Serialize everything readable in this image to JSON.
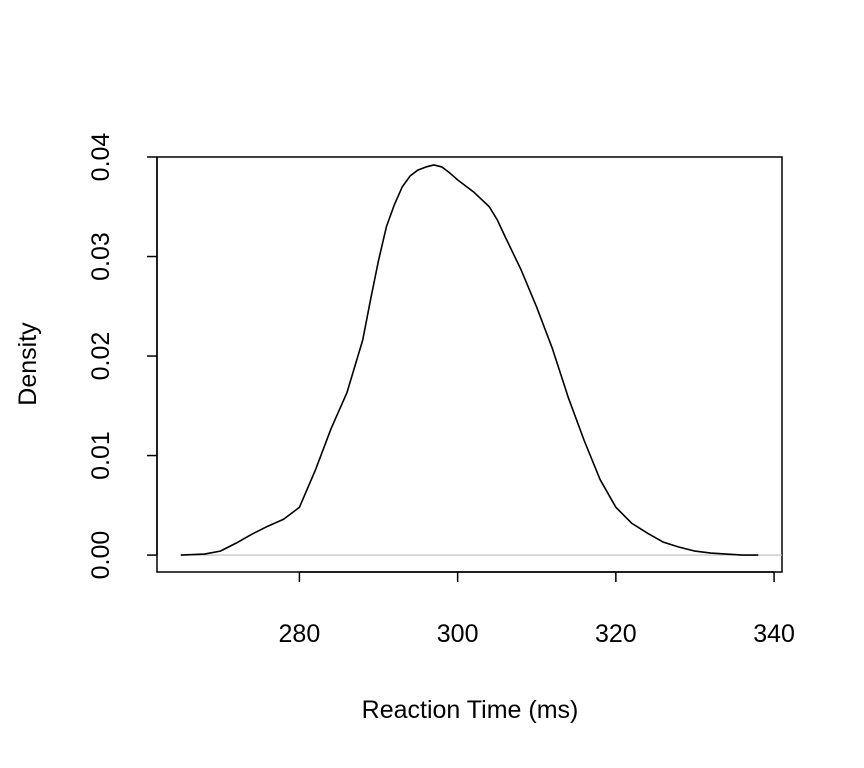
{
  "chart_data": {
    "type": "line",
    "title": "",
    "xlabel": "Reaction Time (ms)",
    "ylabel": "Density",
    "xlim": [
      262,
      341
    ],
    "ylim": [
      -0.0017,
      0.04
    ],
    "x_ticks": [
      280,
      300,
      320,
      340
    ],
    "x_tick_labels": [
      "280",
      "300",
      "320",
      "340"
    ],
    "y_ticks": [
      0.0,
      0.01,
      0.02,
      0.03,
      0.04
    ],
    "y_tick_labels": [
      "0.00",
      "0.01",
      "0.02",
      "0.03",
      "0.04"
    ],
    "grid": false,
    "legend": "none",
    "baseline": {
      "y": 0,
      "color": "#bebebe"
    },
    "series": [
      {
        "color": "#000000",
        "x": [
          265,
          268,
          270,
          272,
          274,
          276,
          278,
          280,
          282,
          284,
          286,
          288,
          289,
          290,
          291,
          292,
          293,
          294,
          295,
          296,
          297,
          298,
          299,
          300,
          302,
          304,
          305,
          306,
          308,
          310,
          312,
          314,
          316,
          318,
          320,
          322,
          324,
          326,
          328,
          330,
          332,
          334,
          336,
          338
        ],
        "y": [
          0.0,
          0.0001,
          0.0004,
          0.0012,
          0.0021,
          0.0029,
          0.0036,
          0.0048,
          0.0085,
          0.0127,
          0.0163,
          0.0216,
          0.0257,
          0.0296,
          0.033,
          0.0352,
          0.037,
          0.0381,
          0.0387,
          0.039,
          0.0392,
          0.039,
          0.0384,
          0.0377,
          0.0365,
          0.035,
          0.0337,
          0.032,
          0.0287,
          0.0249,
          0.0207,
          0.0158,
          0.0115,
          0.0076,
          0.0048,
          0.0032,
          0.0022,
          0.0013,
          0.0008,
          0.0004,
          0.0002,
          0.0001,
          0.0,
          0.0
        ]
      }
    ]
  }
}
